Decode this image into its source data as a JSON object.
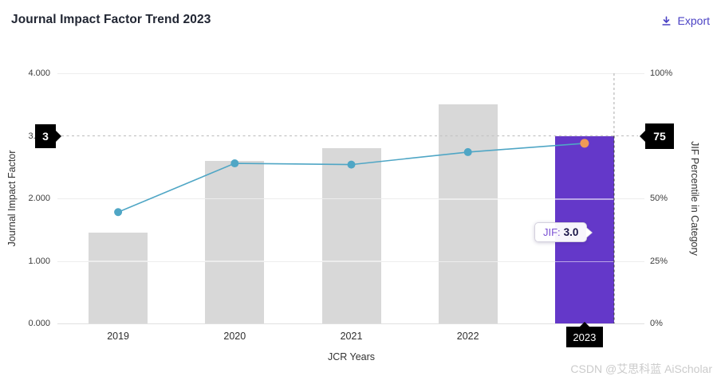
{
  "header": {
    "title": "Journal Impact Factor Trend 2023",
    "export_label": "Export"
  },
  "chart_data": {
    "type": "bar",
    "subtype": "bar+line dual-axis",
    "title": "Journal Impact Factor Trend 2023",
    "categories": [
      "2019",
      "2020",
      "2021",
      "2022",
      "2023"
    ],
    "series": [
      {
        "name": "Journal Impact Factor",
        "type": "bar",
        "axis": "left",
        "values": [
          1.45,
          2.6,
          2.8,
          3.5,
          3.0
        ]
      },
      {
        "name": "JIF Percentile in Category",
        "type": "line",
        "axis": "right",
        "values": [
          44.5,
          64,
          63.5,
          68.5,
          72
        ]
      }
    ],
    "xlabel": "JCR Years",
    "ylabel_left": "Journal Impact Factor",
    "ylabel_right": "JIF Percentile in Category",
    "ylim_left": [
      0,
      4
    ],
    "ylim_right": [
      0,
      100
    ],
    "left_ticks": [
      {
        "label": "4.000",
        "value": 4
      },
      {
        "label": "3.000",
        "value": 3
      },
      {
        "label": "2.000",
        "value": 2
      },
      {
        "label": "1.000",
        "value": 1
      },
      {
        "label": "0.000",
        "value": 0
      }
    ],
    "right_ticks": [
      {
        "label": "100%",
        "value": 100
      },
      {
        "label": "75%",
        "value": 75
      },
      {
        "label": "50%",
        "value": 50
      },
      {
        "label": "25%",
        "value": 25
      },
      {
        "label": "0%",
        "value": 0
      }
    ],
    "grid": true,
    "legend": false,
    "highlight_year": "2023",
    "axis_markers": {
      "left_label": "3",
      "left_value": 3.0,
      "right_label": "75",
      "right_value": 75
    },
    "crosshair": {
      "jif_line": 3.0,
      "year_line": "2023"
    },
    "tooltip": {
      "label": "JIF:",
      "value": "3.0"
    }
  },
  "colors": {
    "bar_default": "#d8d8d8",
    "bar_highlight": "#6438c9",
    "line": "#4fa6c5",
    "point": "#4fa6c5",
    "point_highlight": "#f09a56",
    "accent": "#4a41c4",
    "marker_bg": "#000000"
  },
  "icons": {
    "export": "download-icon"
  },
  "watermark": "CSDN @艾思科蓝 AiScholar"
}
